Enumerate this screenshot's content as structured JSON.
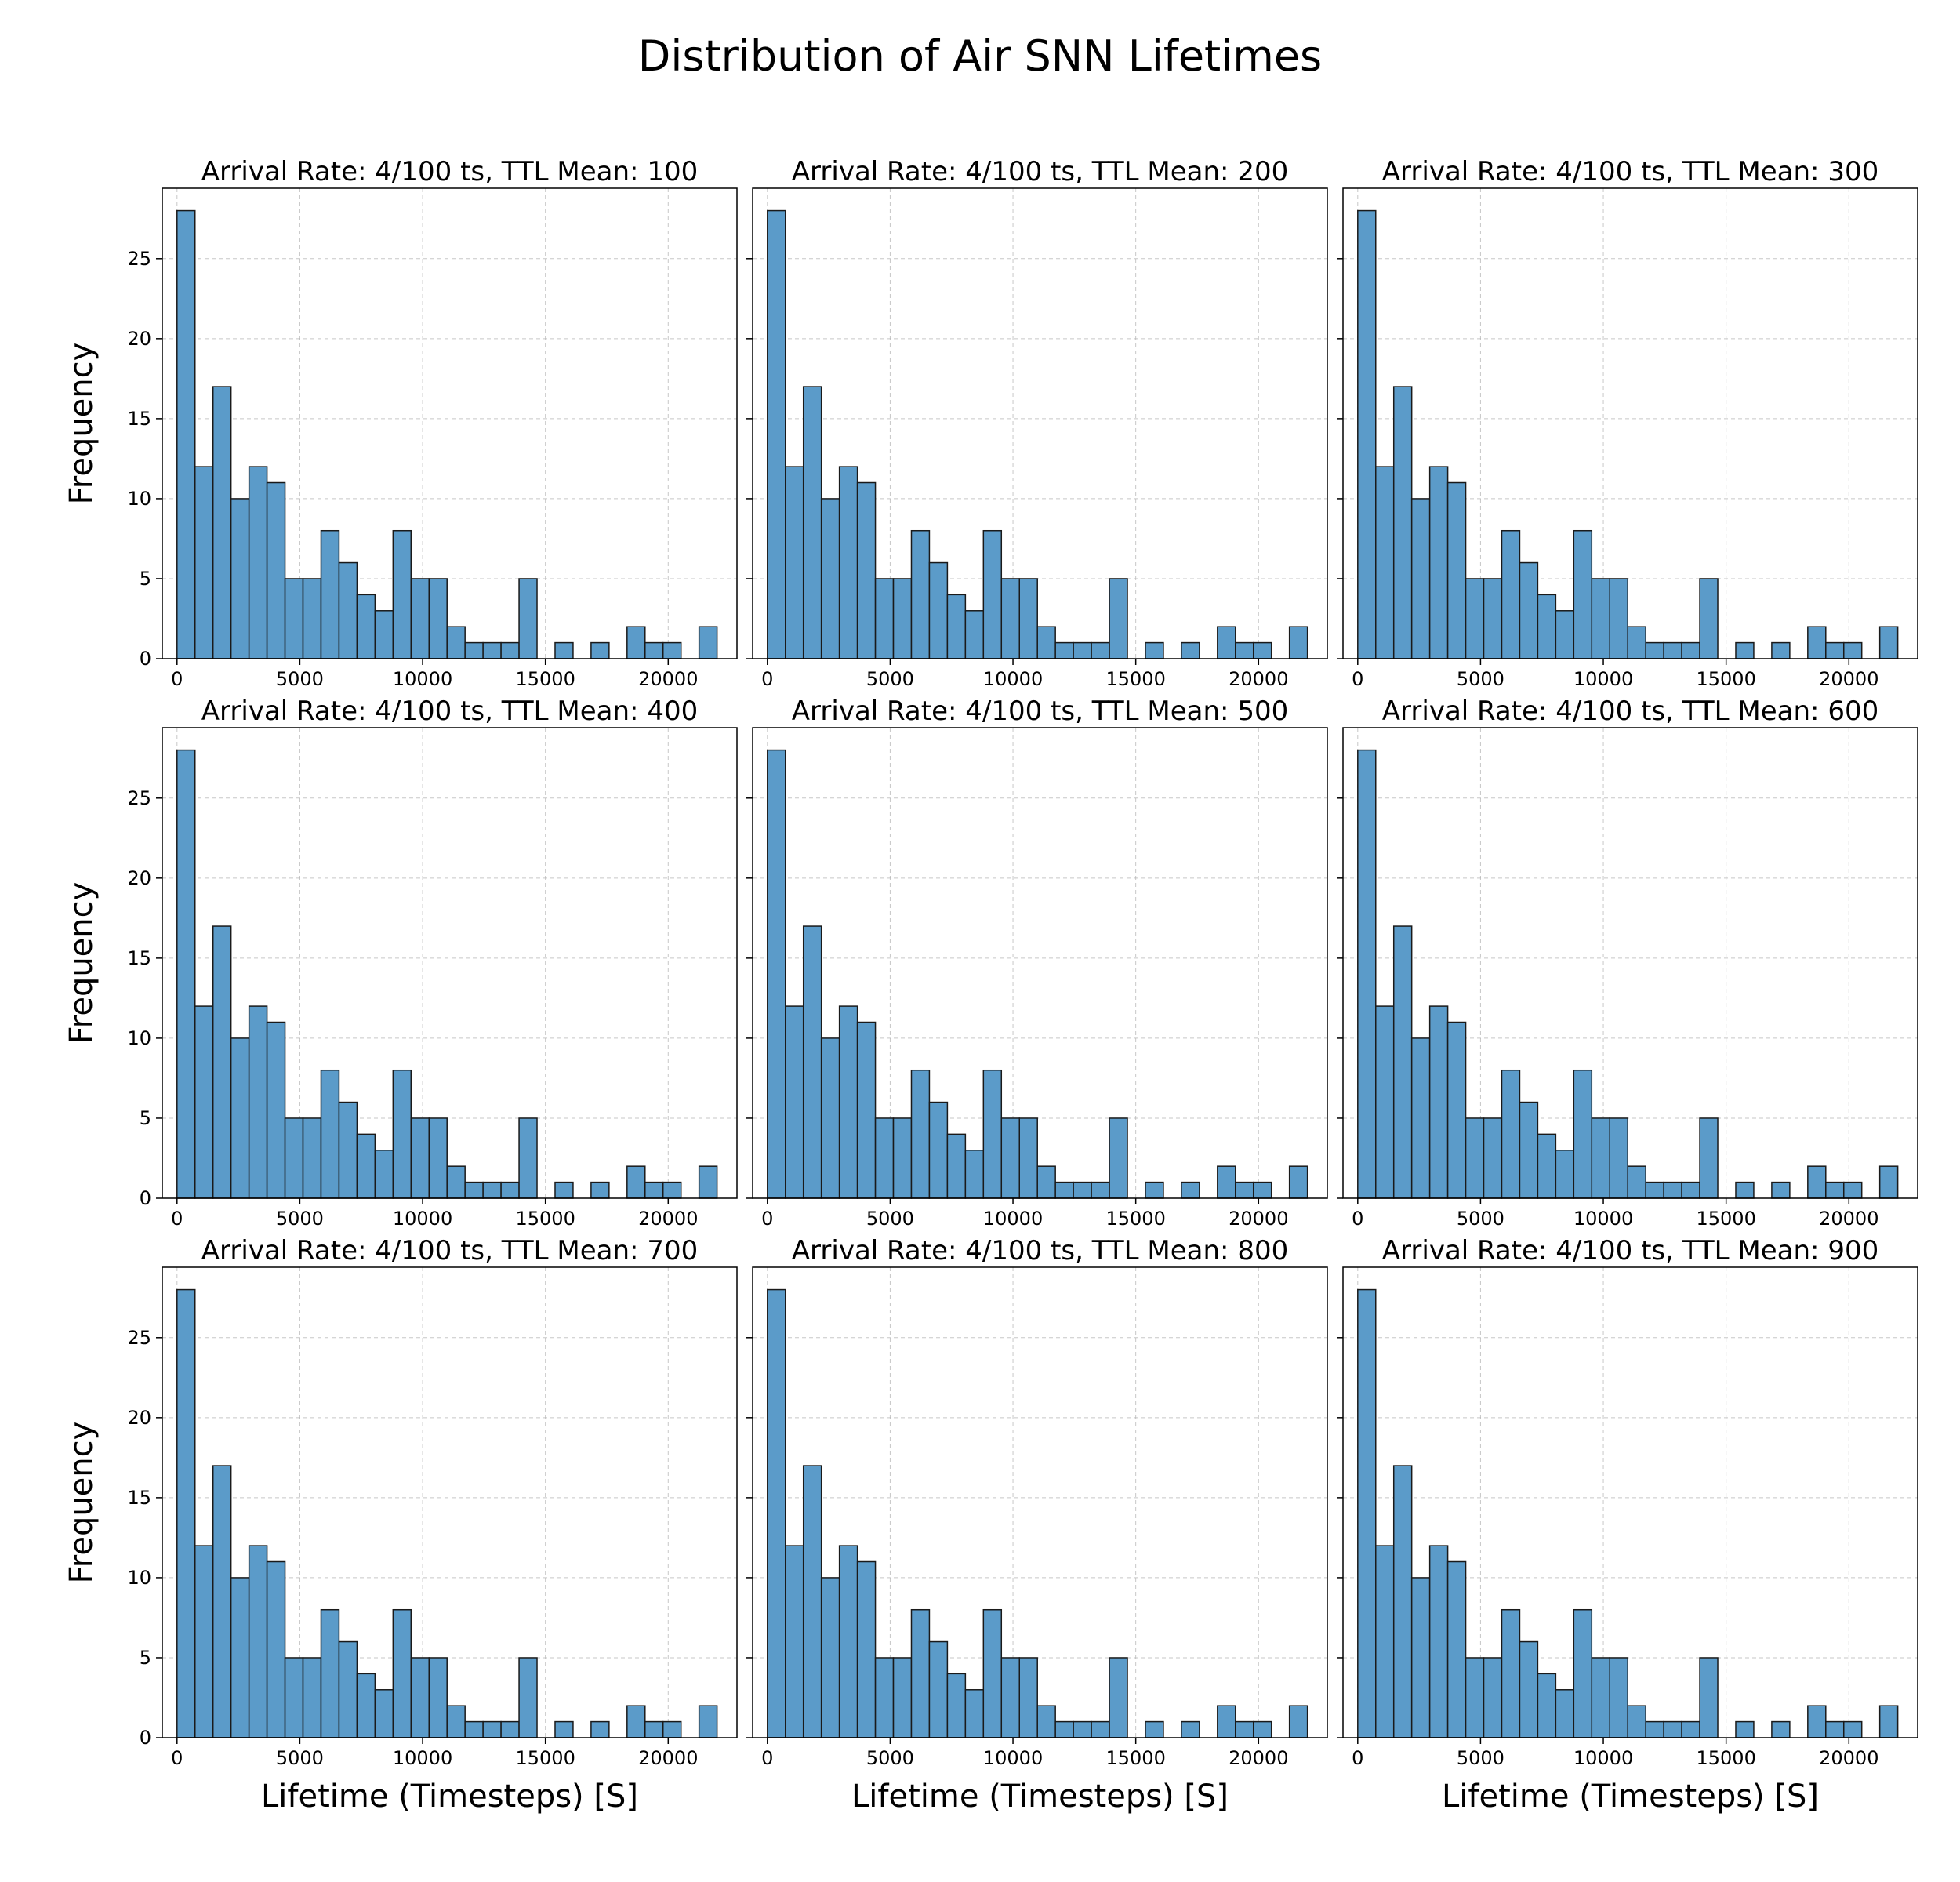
{
  "figure": {
    "title": "Distribution of Air SNN Lifetimes"
  },
  "colors": {
    "bar_fill": "#5b9bc9",
    "bar_edge": "#1a1a1a",
    "grid": "#b0b0b0"
  },
  "chart_data": [
    {
      "type": "bar",
      "title": "Arrival Rate: 4/100 ts, TTL Mean: 100",
      "xlabel": "",
      "ylabel": "Frequency",
      "xlim": [
        -600,
        22800
      ],
      "ylim": [
        0,
        29.4
      ],
      "xticks": [
        0,
        5000,
        10000,
        15000,
        20000
      ],
      "yticks": [
        0,
        5,
        10,
        15,
        20,
        25
      ],
      "bin_start": 0,
      "bin_width": 733,
      "values": [
        28,
        12,
        17,
        10,
        12,
        11,
        5,
        5,
        8,
        6,
        4,
        3,
        8,
        5,
        5,
        2,
        1,
        1,
        1,
        5,
        0,
        1,
        0,
        1,
        0,
        2,
        1,
        1,
        0,
        2
      ],
      "grid": true
    },
    {
      "type": "bar",
      "title": "Arrival Rate: 4/100 ts, TTL Mean: 200",
      "xlabel": "",
      "ylabel": "",
      "xlim": [
        -600,
        22800
      ],
      "ylim": [
        0,
        29.4
      ],
      "xticks": [
        0,
        5000,
        10000,
        15000,
        20000
      ],
      "yticks": [
        0,
        5,
        10,
        15,
        20,
        25
      ],
      "bin_start": 0,
      "bin_width": 733,
      "values": [
        28,
        12,
        17,
        10,
        12,
        11,
        5,
        5,
        8,
        6,
        4,
        3,
        8,
        5,
        5,
        2,
        1,
        1,
        1,
        5,
        0,
        1,
        0,
        1,
        0,
        2,
        1,
        1,
        0,
        2
      ],
      "grid": true
    },
    {
      "type": "bar",
      "title": "Arrival Rate: 4/100 ts, TTL Mean: 300",
      "xlabel": "",
      "ylabel": "",
      "xlim": [
        -600,
        22800
      ],
      "ylim": [
        0,
        29.4
      ],
      "xticks": [
        0,
        5000,
        10000,
        15000,
        20000
      ],
      "yticks": [
        0,
        5,
        10,
        15,
        20,
        25
      ],
      "bin_start": 0,
      "bin_width": 733,
      "values": [
        28,
        12,
        17,
        10,
        12,
        11,
        5,
        5,
        8,
        6,
        4,
        3,
        8,
        5,
        5,
        2,
        1,
        1,
        1,
        5,
        0,
        1,
        0,
        1,
        0,
        2,
        1,
        1,
        0,
        2
      ],
      "grid": true
    },
    {
      "type": "bar",
      "title": "Arrival Rate: 4/100 ts, TTL Mean: 400",
      "xlabel": "",
      "ylabel": "Frequency",
      "xlim": [
        -600,
        22800
      ],
      "ylim": [
        0,
        29.4
      ],
      "xticks": [
        0,
        5000,
        10000,
        15000,
        20000
      ],
      "yticks": [
        0,
        5,
        10,
        15,
        20,
        25
      ],
      "bin_start": 0,
      "bin_width": 733,
      "values": [
        28,
        12,
        17,
        10,
        12,
        11,
        5,
        5,
        8,
        6,
        4,
        3,
        8,
        5,
        5,
        2,
        1,
        1,
        1,
        5,
        0,
        1,
        0,
        1,
        0,
        2,
        1,
        1,
        0,
        2
      ],
      "grid": true
    },
    {
      "type": "bar",
      "title": "Arrival Rate: 4/100 ts, TTL Mean: 500",
      "xlabel": "",
      "ylabel": "",
      "xlim": [
        -600,
        22800
      ],
      "ylim": [
        0,
        29.4
      ],
      "xticks": [
        0,
        5000,
        10000,
        15000,
        20000
      ],
      "yticks": [
        0,
        5,
        10,
        15,
        20,
        25
      ],
      "bin_start": 0,
      "bin_width": 733,
      "values": [
        28,
        12,
        17,
        10,
        12,
        11,
        5,
        5,
        8,
        6,
        4,
        3,
        8,
        5,
        5,
        2,
        1,
        1,
        1,
        5,
        0,
        1,
        0,
        1,
        0,
        2,
        1,
        1,
        0,
        2
      ],
      "grid": true
    },
    {
      "type": "bar",
      "title": "Arrival Rate: 4/100 ts, TTL Mean: 600",
      "xlabel": "",
      "ylabel": "",
      "xlim": [
        -600,
        22800
      ],
      "ylim": [
        0,
        29.4
      ],
      "xticks": [
        0,
        5000,
        10000,
        15000,
        20000
      ],
      "yticks": [
        0,
        5,
        10,
        15,
        20,
        25
      ],
      "bin_start": 0,
      "bin_width": 733,
      "values": [
        28,
        12,
        17,
        10,
        12,
        11,
        5,
        5,
        8,
        6,
        4,
        3,
        8,
        5,
        5,
        2,
        1,
        1,
        1,
        5,
        0,
        1,
        0,
        1,
        0,
        2,
        1,
        1,
        0,
        2
      ],
      "grid": true
    },
    {
      "type": "bar",
      "title": "Arrival Rate: 4/100 ts, TTL Mean: 700",
      "xlabel": "Lifetime (Timesteps) [S]",
      "ylabel": "Frequency",
      "xlim": [
        -600,
        22800
      ],
      "ylim": [
        0,
        29.4
      ],
      "xticks": [
        0,
        5000,
        10000,
        15000,
        20000
      ],
      "yticks": [
        0,
        5,
        10,
        15,
        20,
        25
      ],
      "bin_start": 0,
      "bin_width": 733,
      "values": [
        28,
        12,
        17,
        10,
        12,
        11,
        5,
        5,
        8,
        6,
        4,
        3,
        8,
        5,
        5,
        2,
        1,
        1,
        1,
        5,
        0,
        1,
        0,
        1,
        0,
        2,
        1,
        1,
        0,
        2
      ],
      "grid": true
    },
    {
      "type": "bar",
      "title": "Arrival Rate: 4/100 ts, TTL Mean: 800",
      "xlabel": "Lifetime (Timesteps) [S]",
      "ylabel": "",
      "xlim": [
        -600,
        22800
      ],
      "ylim": [
        0,
        29.4
      ],
      "xticks": [
        0,
        5000,
        10000,
        15000,
        20000
      ],
      "yticks": [
        0,
        5,
        10,
        15,
        20,
        25
      ],
      "bin_start": 0,
      "bin_width": 733,
      "values": [
        28,
        12,
        17,
        10,
        12,
        11,
        5,
        5,
        8,
        6,
        4,
        3,
        8,
        5,
        5,
        2,
        1,
        1,
        1,
        5,
        0,
        1,
        0,
        1,
        0,
        2,
        1,
        1,
        0,
        2
      ],
      "grid": true
    },
    {
      "type": "bar",
      "title": "Arrival Rate: 4/100 ts, TTL Mean: 900",
      "xlabel": "Lifetime (Timesteps) [S]",
      "ylabel": "",
      "xlim": [
        -600,
        22800
      ],
      "ylim": [
        0,
        29.4
      ],
      "xticks": [
        0,
        5000,
        10000,
        15000,
        20000
      ],
      "yticks": [
        0,
        5,
        10,
        15,
        20,
        25
      ],
      "bin_start": 0,
      "bin_width": 733,
      "values": [
        28,
        12,
        17,
        10,
        12,
        11,
        5,
        5,
        8,
        6,
        4,
        3,
        8,
        5,
        5,
        2,
        1,
        1,
        1,
        5,
        0,
        1,
        0,
        1,
        0,
        2,
        1,
        1,
        0,
        2
      ],
      "grid": true
    }
  ]
}
